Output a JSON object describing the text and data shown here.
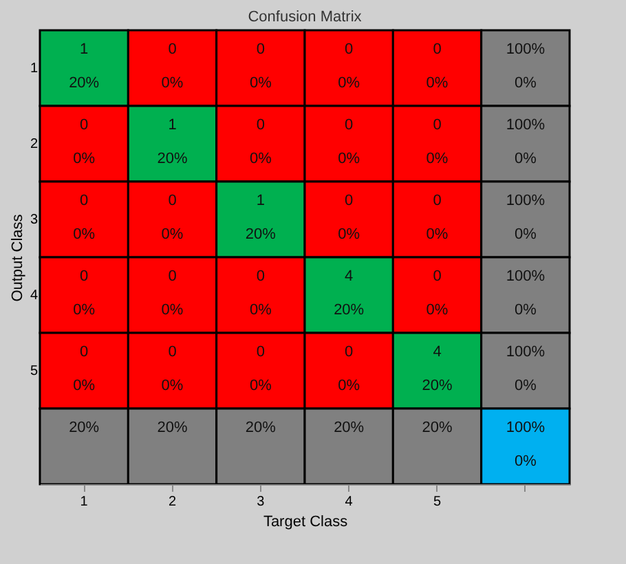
{
  "chart_data": {
    "type": "heatmap",
    "title": "Confusion Matrix",
    "xlabel": "Target Class",
    "ylabel": "Output Class",
    "categories": [
      "1",
      "2",
      "3",
      "4",
      "5",
      null
    ],
    "y_categories": [
      "1",
      "2",
      "3",
      "4",
      "5",
      null
    ],
    "cells": [
      [
        1,
        0,
        0,
        0,
        0,
        100
      ],
      [
        0,
        1,
        0,
        0,
        0,
        100
      ],
      [
        0,
        0,
        1,
        0,
        0,
        100
      ],
      [
        0,
        0,
        0,
        4,
        0,
        100
      ],
      [
        0,
        0,
        0,
        0,
        4,
        100
      ],
      [
        20,
        20,
        20,
        20,
        20,
        100
      ]
    ],
    "cell_labels": [
      [
        "1",
        "0",
        "0",
        "0",
        "0",
        "100%"
      ],
      [
        "0",
        "1",
        "0",
        "0",
        "0",
        "100%"
      ],
      [
        "0",
        "0",
        "1",
        "0",
        "0",
        "100%"
      ],
      [
        "0",
        "0",
        "0",
        "4",
        "0",
        "100%"
      ],
      [
        "0",
        "0",
        "0",
        "0",
        "4",
        "100%"
      ],
      [
        "20%",
        "20%",
        "20%",
        "20%",
        "20%",
        "100%"
      ]
    ],
    "colors": [
      [
        "#00b050",
        "#ff0000",
        "#ff0000",
        "#ff0000",
        "#ff0000",
        "#808080"
      ],
      [
        "#ff0000",
        "#00b050",
        "#ff0000",
        "#ff0000",
        "#ff0000",
        "#808080"
      ],
      [
        "#ff0000",
        "#ff0000",
        "#00b050",
        "#ff0000",
        "#ff0000",
        "#808080"
      ],
      [
        "#ff0000",
        "#ff0000",
        "#ff0000",
        "#00b050",
        "#ff0000",
        "#808080"
      ],
      [
        "#ff0000",
        "#ff0000",
        "#ff0000",
        "#ff0000",
        "#00b050",
        "#808080"
      ],
      [
        "#808080",
        "#808080",
        "#808080",
        "#808080",
        "#808080",
        "#00b0f0"
      ]
    ],
    "annotations": [
      "20%",
      "0%",
      "0%",
      "0%",
      "0%",
      "0%",
      "0%",
      "20%",
      "0%",
      "0%",
      "0%",
      "0%",
      "0%",
      "0%",
      "20%",
      "0%",
      "0%",
      "0%",
      "0%",
      "0%",
      "0%",
      "20%",
      "0%",
      "0%",
      "0%",
      "0%",
      "0%",
      "0%",
      "20%",
      "0%",
      "0%"
    ]
  }
}
